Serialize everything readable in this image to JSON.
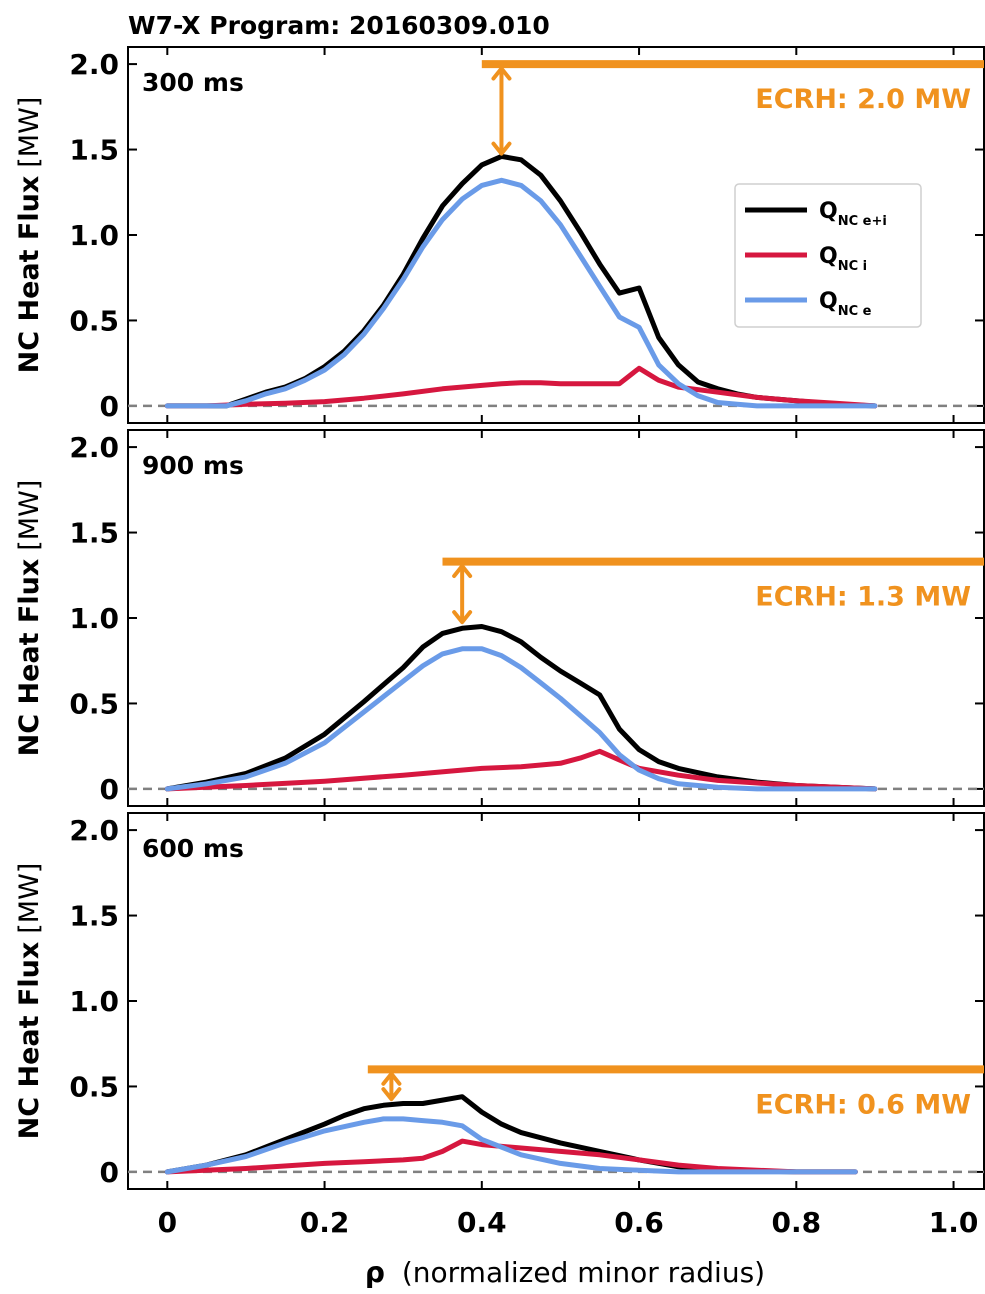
{
  "figure_title": "W7-X Program: 20160309.010",
  "colors": {
    "total": "#000000",
    "ion": "#d6173f",
    "electron": "#6a9be8",
    "ecrh": "#f0921e",
    "zero_line": "#808080"
  },
  "ylabel_bold": "NC Heat Flux",
  "ylabel_unit": "[MW]",
  "xlabel_symbol": "ρ",
  "xlabel_text": "(normalized minor radius)",
  "legend": [
    {
      "base": "Q",
      "sub": "NC e+i",
      "key": "total"
    },
    {
      "base": "Q",
      "sub": "NC i",
      "key": "ion"
    },
    {
      "base": "Q",
      "sub": "NC e",
      "key": "electron"
    }
  ],
  "chart_data": [
    {
      "type": "line",
      "panel_label": "300 ms",
      "ecrh_label": "ECRH: 2.0 MW",
      "ecrh_level": 2.0,
      "ecrh_x_start": 0.4,
      "arrow_x": 0.425,
      "arrow_range": [
        1.47,
        1.98
      ],
      "xlim": [
        -0.05,
        1.04
      ],
      "ylim": [
        -0.1,
        2.1
      ],
      "yticks": [
        0,
        0.5,
        1.0,
        1.5,
        2.0
      ],
      "ytick_labels": [
        "0",
        "0.5",
        "1.0",
        "1.5",
        "2.0"
      ],
      "xticks": [
        0,
        0.2,
        0.4,
        0.6,
        0.8,
        1.0
      ],
      "xtick_labels": [
        "0",
        "0.2",
        "0.4",
        "0.6",
        "0.8",
        "1.0"
      ],
      "show_legend": true,
      "series": [
        {
          "key": "total",
          "x": [
            0,
            0.025,
            0.05,
            0.075,
            0.1,
            0.125,
            0.15,
            0.175,
            0.2,
            0.225,
            0.25,
            0.275,
            0.3,
            0.325,
            0.35,
            0.375,
            0.4,
            0.425,
            0.45,
            0.475,
            0.5,
            0.525,
            0.55,
            0.575,
            0.6,
            0.625,
            0.65,
            0.675,
            0.7,
            0.725,
            0.75,
            0.8,
            0.85,
            0.9
          ],
          "y": [
            0,
            0,
            0,
            0,
            0.04,
            0.08,
            0.11,
            0.16,
            0.23,
            0.32,
            0.44,
            0.59,
            0.77,
            0.98,
            1.17,
            1.3,
            1.41,
            1.46,
            1.44,
            1.35,
            1.2,
            1.02,
            0.83,
            0.66,
            0.69,
            0.4,
            0.24,
            0.14,
            0.1,
            0.07,
            0.05,
            0.03,
            0.01,
            0
          ]
        },
        {
          "key": "ion",
          "x": [
            0,
            0.05,
            0.1,
            0.15,
            0.2,
            0.25,
            0.3,
            0.35,
            0.4,
            0.425,
            0.45,
            0.475,
            0.5,
            0.525,
            0.55,
            0.575,
            0.6,
            0.625,
            0.65,
            0.7,
            0.75,
            0.8,
            0.85,
            0.9
          ],
          "y": [
            0,
            0,
            0.01,
            0.015,
            0.025,
            0.045,
            0.07,
            0.1,
            0.12,
            0.13,
            0.135,
            0.135,
            0.13,
            0.13,
            0.13,
            0.13,
            0.22,
            0.15,
            0.11,
            0.08,
            0.05,
            0.03,
            0.015,
            0
          ]
        },
        {
          "key": "electron",
          "x": [
            0,
            0.025,
            0.05,
            0.075,
            0.1,
            0.125,
            0.15,
            0.175,
            0.2,
            0.225,
            0.25,
            0.275,
            0.3,
            0.325,
            0.35,
            0.375,
            0.4,
            0.425,
            0.45,
            0.475,
            0.5,
            0.525,
            0.55,
            0.575,
            0.6,
            0.625,
            0.65,
            0.675,
            0.7,
            0.725,
            0.75,
            0.8,
            0.85,
            0.9
          ],
          "y": [
            0,
            0,
            0,
            0,
            0.03,
            0.07,
            0.1,
            0.15,
            0.21,
            0.3,
            0.42,
            0.57,
            0.74,
            0.93,
            1.09,
            1.21,
            1.29,
            1.32,
            1.29,
            1.2,
            1.06,
            0.88,
            0.7,
            0.52,
            0.46,
            0.24,
            0.13,
            0.06,
            0.02,
            0.01,
            0,
            0,
            0,
            0
          ]
        }
      ]
    },
    {
      "type": "line",
      "panel_label": "900 ms",
      "ecrh_label": "ECRH: 1.3 MW",
      "ecrh_level": 1.33,
      "ecrh_x_start": 0.35,
      "arrow_x": 0.375,
      "arrow_range": [
        0.97,
        1.31
      ],
      "xlim": [
        -0.05,
        1.04
      ],
      "ylim": [
        -0.1,
        2.1
      ],
      "yticks": [
        0,
        0.5,
        1.0,
        1.5,
        2.0
      ],
      "ytick_labels": [
        "0",
        "0.5",
        "1.0",
        "1.5",
        "2.0"
      ],
      "xticks": [
        0,
        0.2,
        0.4,
        0.6,
        0.8,
        1.0
      ],
      "xtick_labels": [
        "0",
        "0.2",
        "0.4",
        "0.6",
        "0.8",
        "1.0"
      ],
      "show_legend": false,
      "series": [
        {
          "key": "total",
          "x": [
            0,
            0.05,
            0.1,
            0.15,
            0.2,
            0.25,
            0.3,
            0.325,
            0.35,
            0.375,
            0.4,
            0.425,
            0.45,
            0.475,
            0.5,
            0.525,
            0.55,
            0.575,
            0.6,
            0.625,
            0.65,
            0.7,
            0.75,
            0.8,
            0.85,
            0.9
          ],
          "y": [
            0,
            0.04,
            0.09,
            0.18,
            0.32,
            0.51,
            0.71,
            0.83,
            0.91,
            0.94,
            0.95,
            0.92,
            0.86,
            0.77,
            0.69,
            0.62,
            0.55,
            0.35,
            0.23,
            0.16,
            0.12,
            0.07,
            0.04,
            0.02,
            0.01,
            0
          ]
        },
        {
          "key": "ion",
          "x": [
            0,
            0.1,
            0.2,
            0.3,
            0.4,
            0.45,
            0.5,
            0.525,
            0.55,
            0.575,
            0.6,
            0.65,
            0.7,
            0.8,
            0.9
          ],
          "y": [
            0,
            0.02,
            0.045,
            0.08,
            0.12,
            0.13,
            0.15,
            0.18,
            0.22,
            0.17,
            0.12,
            0.08,
            0.05,
            0.02,
            0
          ]
        },
        {
          "key": "electron",
          "x": [
            0,
            0.05,
            0.1,
            0.15,
            0.2,
            0.25,
            0.3,
            0.325,
            0.35,
            0.375,
            0.4,
            0.425,
            0.45,
            0.475,
            0.5,
            0.525,
            0.55,
            0.575,
            0.6,
            0.625,
            0.65,
            0.7,
            0.75,
            0.8,
            0.85,
            0.9
          ],
          "y": [
            0,
            0.03,
            0.07,
            0.15,
            0.27,
            0.45,
            0.63,
            0.72,
            0.79,
            0.82,
            0.82,
            0.78,
            0.71,
            0.62,
            0.53,
            0.43,
            0.33,
            0.2,
            0.11,
            0.06,
            0.03,
            0.01,
            0,
            0,
            0,
            0
          ]
        }
      ]
    },
    {
      "type": "line",
      "panel_label": "600 ms",
      "ecrh_label": "ECRH: 0.6 MW",
      "ecrh_level": 0.6,
      "ecrh_x_start": 0.255,
      "arrow_x": 0.285,
      "arrow_range": [
        0.42,
        0.58
      ],
      "xlim": [
        -0.05,
        1.04
      ],
      "ylim": [
        -0.1,
        2.1
      ],
      "yticks": [
        0,
        0.5,
        1.0,
        1.5,
        2.0
      ],
      "ytick_labels": [
        "0",
        "0.5",
        "1.0",
        "1.5",
        "2.0"
      ],
      "xticks": [
        0,
        0.2,
        0.4,
        0.6,
        0.8,
        1.0
      ],
      "xtick_labels": [
        "0",
        "0.2",
        "0.4",
        "0.6",
        "0.8",
        "1.0"
      ],
      "show_legend": false,
      "series": [
        {
          "key": "total",
          "x": [
            0,
            0.05,
            0.1,
            0.15,
            0.2,
            0.225,
            0.25,
            0.275,
            0.3,
            0.325,
            0.35,
            0.375,
            0.4,
            0.425,
            0.45,
            0.5,
            0.55,
            0.6,
            0.65,
            0.7,
            0.8,
            0.875
          ],
          "y": [
            0,
            0.04,
            0.1,
            0.19,
            0.28,
            0.33,
            0.37,
            0.39,
            0.4,
            0.4,
            0.42,
            0.44,
            0.35,
            0.28,
            0.23,
            0.17,
            0.12,
            0.07,
            0.03,
            0.01,
            0,
            0
          ]
        },
        {
          "key": "ion",
          "x": [
            0,
            0.1,
            0.2,
            0.25,
            0.3,
            0.325,
            0.35,
            0.375,
            0.4,
            0.45,
            0.5,
            0.55,
            0.6,
            0.65,
            0.7,
            0.8,
            0.875
          ],
          "y": [
            0,
            0.02,
            0.05,
            0.06,
            0.07,
            0.08,
            0.12,
            0.18,
            0.16,
            0.14,
            0.12,
            0.1,
            0.07,
            0.04,
            0.02,
            0,
            0
          ]
        },
        {
          "key": "electron",
          "x": [
            0,
            0.05,
            0.1,
            0.15,
            0.2,
            0.25,
            0.275,
            0.3,
            0.325,
            0.35,
            0.375,
            0.4,
            0.45,
            0.5,
            0.55,
            0.6,
            0.65,
            0.7,
            0.8,
            0.875
          ],
          "y": [
            0,
            0.04,
            0.09,
            0.17,
            0.24,
            0.29,
            0.31,
            0.31,
            0.3,
            0.29,
            0.27,
            0.19,
            0.1,
            0.05,
            0.02,
            0.01,
            0,
            0,
            0,
            0
          ]
        }
      ]
    }
  ]
}
